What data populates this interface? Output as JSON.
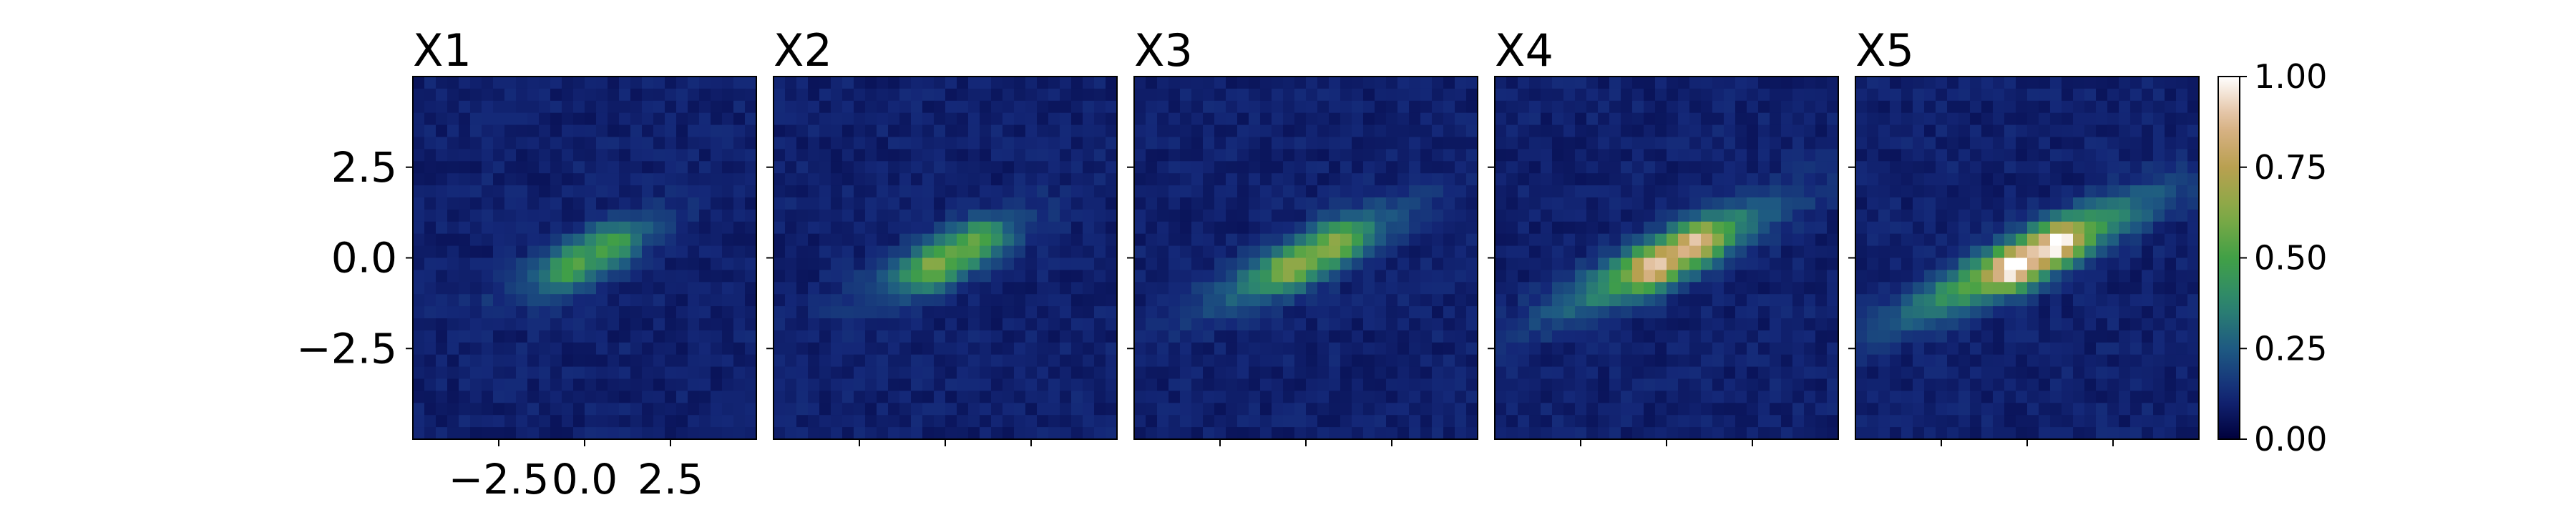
{
  "chart_data": {
    "type": "heatmap",
    "colormap": "gist_earth",
    "colorbar": {
      "range": [
        0.0,
        1.0
      ],
      "ticks": [
        0.0,
        0.25,
        0.5,
        0.75,
        1.0
      ],
      "tick_labels": [
        "0.00",
        "0.25",
        "0.50",
        "0.75",
        "1.00"
      ]
    },
    "axis": {
      "range": [
        -5.0,
        5.0
      ],
      "ticks": [
        -2.5,
        0.0,
        2.5
      ],
      "x_tick_labels": [
        "−2.5",
        "0.0",
        "2.5"
      ],
      "y_tick_labels": [
        "2.5",
        "0.0",
        "−2.5"
      ]
    },
    "panels": [
      {
        "title": "X1",
        "peak": 0.45,
        "spread": 1.0
      },
      {
        "title": "X2",
        "peak": 0.55,
        "spread": 1.05
      },
      {
        "title": "X3",
        "peak": 0.62,
        "spread": 1.3
      },
      {
        "title": "X4",
        "peak": 0.85,
        "spread": 1.45
      },
      {
        "title": "X5",
        "peak": 1.0,
        "spread": 1.6
      }
    ]
  }
}
